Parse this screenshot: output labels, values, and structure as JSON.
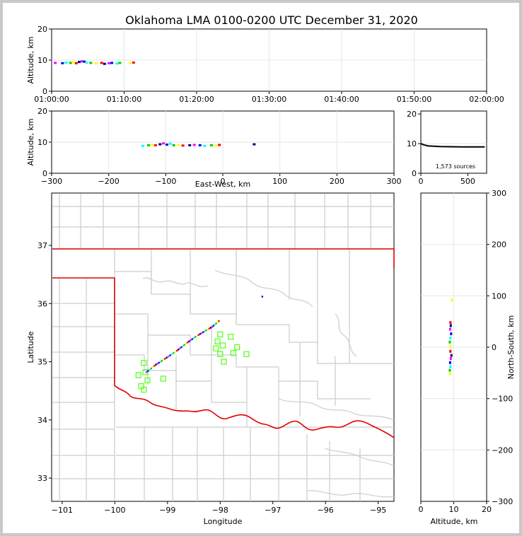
{
  "title": "Oklahoma LMA 0100-0200 UTC December 31, 2020",
  "colors": {
    "state_border": "#e00000",
    "county_lines": "#cccccc",
    "station_marker": "#66ff33",
    "grid": "#e6e6e6",
    "frame_background": "#c8c8c8"
  },
  "panels": {
    "time_height": {
      "ylabel": "Altitude, km",
      "xticks": [
        "01:00:00",
        "01:10:00",
        "01:20:00",
        "01:30:00",
        "01:40:00",
        "01:50:00",
        "02:00:00"
      ],
      "yticks": [
        "0",
        "10",
        "20"
      ]
    },
    "ew_height": {
      "ylabel": "Altitude, km",
      "xlabel": "East-West, km",
      "xticks": [
        "−300",
        "−200",
        "−100",
        "0",
        "100",
        "200",
        "300"
      ],
      "yticks": [
        "0",
        "10",
        "20"
      ]
    },
    "histogram": {
      "xticks": [
        "0",
        "500"
      ],
      "yticks": [
        "0",
        "10",
        "20"
      ],
      "annotation": "1,573 sources"
    },
    "plan_view": {
      "xlabel": "Longitude",
      "ylabel": "Latitude",
      "xticks": [
        "−101",
        "−100",
        "−99",
        "−98",
        "−97",
        "−96",
        "−95"
      ],
      "yticks": [
        "33",
        "34",
        "35",
        "36",
        "37"
      ]
    },
    "ns_height": {
      "xlabel": "Altitude, km",
      "ylabel": "North-South, km",
      "xticks": [
        "0",
        "10",
        "20"
      ],
      "yticks": [
        "−300",
        "−200",
        "−100",
        "0",
        "100",
        "200",
        "300"
      ]
    }
  },
  "chart_data": {
    "type": "scatter",
    "source_count": 1573,
    "time_height": {
      "xlim": [
        "01:00:00",
        "02:00:00"
      ],
      "ylim": [
        0,
        20
      ],
      "grid": true,
      "sources": [
        {
          "t_min": 0.5,
          "alt_km": 9.1
        },
        {
          "t_min": 1.5,
          "alt_km": 9.0
        },
        {
          "t_min": 2.0,
          "alt_km": 9.2
        },
        {
          "t_min": 2.6,
          "alt_km": 9.1
        },
        {
          "t_min": 3.0,
          "alt_km": 9.3
        },
        {
          "t_min": 3.4,
          "alt_km": 9.0
        },
        {
          "t_min": 3.8,
          "alt_km": 9.4
        },
        {
          "t_min": 4.2,
          "alt_km": 9.6
        },
        {
          "t_min": 4.5,
          "alt_km": 9.5
        },
        {
          "t_min": 4.8,
          "alt_km": 9.2
        },
        {
          "t_min": 5.4,
          "alt_km": 9.1
        },
        {
          "t_min": 6.1,
          "alt_km": 9.0
        },
        {
          "t_min": 6.9,
          "alt_km": 9.1
        },
        {
          "t_min": 7.3,
          "alt_km": 8.8
        },
        {
          "t_min": 7.9,
          "alt_km": 9.0
        },
        {
          "t_min": 8.3,
          "alt_km": 9.1
        },
        {
          "t_min": 9.0,
          "alt_km": 8.9
        },
        {
          "t_min": 9.4,
          "alt_km": 9.1
        },
        {
          "t_min": 10.8,
          "alt_km": 9.0
        },
        {
          "t_min": 11.3,
          "alt_km": 9.2
        }
      ]
    },
    "ew_height": {
      "xlim": [
        -300,
        300
      ],
      "ylim": [
        0,
        20
      ],
      "grid": true,
      "sources": [
        {
          "x_km": -140,
          "alt_km": 8.8
        },
        {
          "x_km": -130,
          "alt_km": 9.0
        },
        {
          "x_km": -124,
          "alt_km": 9.1
        },
        {
          "x_km": -118,
          "alt_km": 9.0
        },
        {
          "x_km": -110,
          "alt_km": 9.3
        },
        {
          "x_km": -104,
          "alt_km": 9.6
        },
        {
          "x_km": -98,
          "alt_km": 9.2
        },
        {
          "x_km": -92,
          "alt_km": 9.5
        },
        {
          "x_km": -86,
          "alt_km": 9.0
        },
        {
          "x_km": -78,
          "alt_km": 9.1
        },
        {
          "x_km": -70,
          "alt_km": 8.9
        },
        {
          "x_km": -58,
          "alt_km": 9.0
        },
        {
          "x_km": -50,
          "alt_km": 9.1
        },
        {
          "x_km": -40,
          "alt_km": 9.0
        },
        {
          "x_km": -32,
          "alt_km": 8.8
        },
        {
          "x_km": -20,
          "alt_km": 9.0
        },
        {
          "x_km": -12,
          "alt_km": 8.9
        },
        {
          "x_km": -6,
          "alt_km": 9.1
        },
        {
          "x_km": 55,
          "alt_km": 9.3
        }
      ]
    },
    "histogram": {
      "type": "line",
      "xlim": [
        0,
        700
      ],
      "ylim": [
        0,
        21
      ],
      "profile": [
        {
          "count": 0,
          "alt_km": 10.0
        },
        {
          "count": 30,
          "alt_km": 9.6
        },
        {
          "count": 80,
          "alt_km": 9.2
        },
        {
          "count": 200,
          "alt_km": 9.0
        },
        {
          "count": 450,
          "alt_km": 8.9
        },
        {
          "count": 680,
          "alt_km": 8.9
        }
      ]
    },
    "plan_view": {
      "xlim": [
        -101.2,
        -94.7
      ],
      "ylim": [
        32.6,
        37.9
      ],
      "channel": [
        {
          "lon": -99.4,
          "lat": 34.82
        },
        {
          "lon": -99.22,
          "lat": 34.95
        },
        {
          "lon": -99.05,
          "lat": 35.05
        },
        {
          "lon": -98.85,
          "lat": 35.17
        },
        {
          "lon": -98.68,
          "lat": 35.29
        },
        {
          "lon": -98.5,
          "lat": 35.41
        },
        {
          "lon": -98.32,
          "lat": 35.51
        },
        {
          "lon": -98.15,
          "lat": 35.6
        },
        {
          "lon": -98.0,
          "lat": 35.72
        }
      ],
      "isolated_source": {
        "lon": -97.2,
        "lat": 36.12
      },
      "stations": [
        {
          "lon": -99.55,
          "lat": 34.77
        },
        {
          "lon": -99.45,
          "lat": 34.98
        },
        {
          "lon": -99.42,
          "lat": 34.82
        },
        {
          "lon": -99.38,
          "lat": 34.68
        },
        {
          "lon": -99.5,
          "lat": 34.58
        },
        {
          "lon": -99.45,
          "lat": 34.52
        },
        {
          "lon": -99.08,
          "lat": 34.71
        },
        {
          "lon": -98.0,
          "lat": 35.47
        },
        {
          "lon": -98.05,
          "lat": 35.35
        },
        {
          "lon": -98.08,
          "lat": 35.23
        },
        {
          "lon": -97.95,
          "lat": 35.28
        },
        {
          "lon": -98.0,
          "lat": 35.13
        },
        {
          "lon": -97.93,
          "lat": 35.0
        },
        {
          "lon": -97.8,
          "lat": 35.43
        },
        {
          "lon": -97.75,
          "lat": 35.15
        },
        {
          "lon": -97.68,
          "lat": 35.25
        },
        {
          "lon": -97.5,
          "lat": 35.13
        }
      ]
    },
    "ns_height": {
      "xlim": [
        0,
        20
      ],
      "ylim": [
        -300,
        300
      ],
      "grid": true,
      "sources": [
        {
          "alt_km": 9.4,
          "y_km": 92
        },
        {
          "alt_km": 9.0,
          "y_km": 48
        },
        {
          "alt_km": 9.1,
          "y_km": 42
        },
        {
          "alt_km": 8.9,
          "y_km": 35
        },
        {
          "alt_km": 9.2,
          "y_km": 26
        },
        {
          "alt_km": 9.0,
          "y_km": 18
        },
        {
          "alt_km": 8.8,
          "y_km": 10
        },
        {
          "alt_km": 9.1,
          "y_km": 2
        },
        {
          "alt_km": 9.0,
          "y_km": -8
        },
        {
          "alt_km": 9.3,
          "y_km": -16
        },
        {
          "alt_km": 9.1,
          "y_km": -22
        },
        {
          "alt_km": 8.9,
          "y_km": -30
        },
        {
          "alt_km": 9.0,
          "y_km": -38
        },
        {
          "alt_km": 8.8,
          "y_km": -45
        },
        {
          "alt_km": 8.9,
          "y_km": -52
        }
      ]
    }
  }
}
